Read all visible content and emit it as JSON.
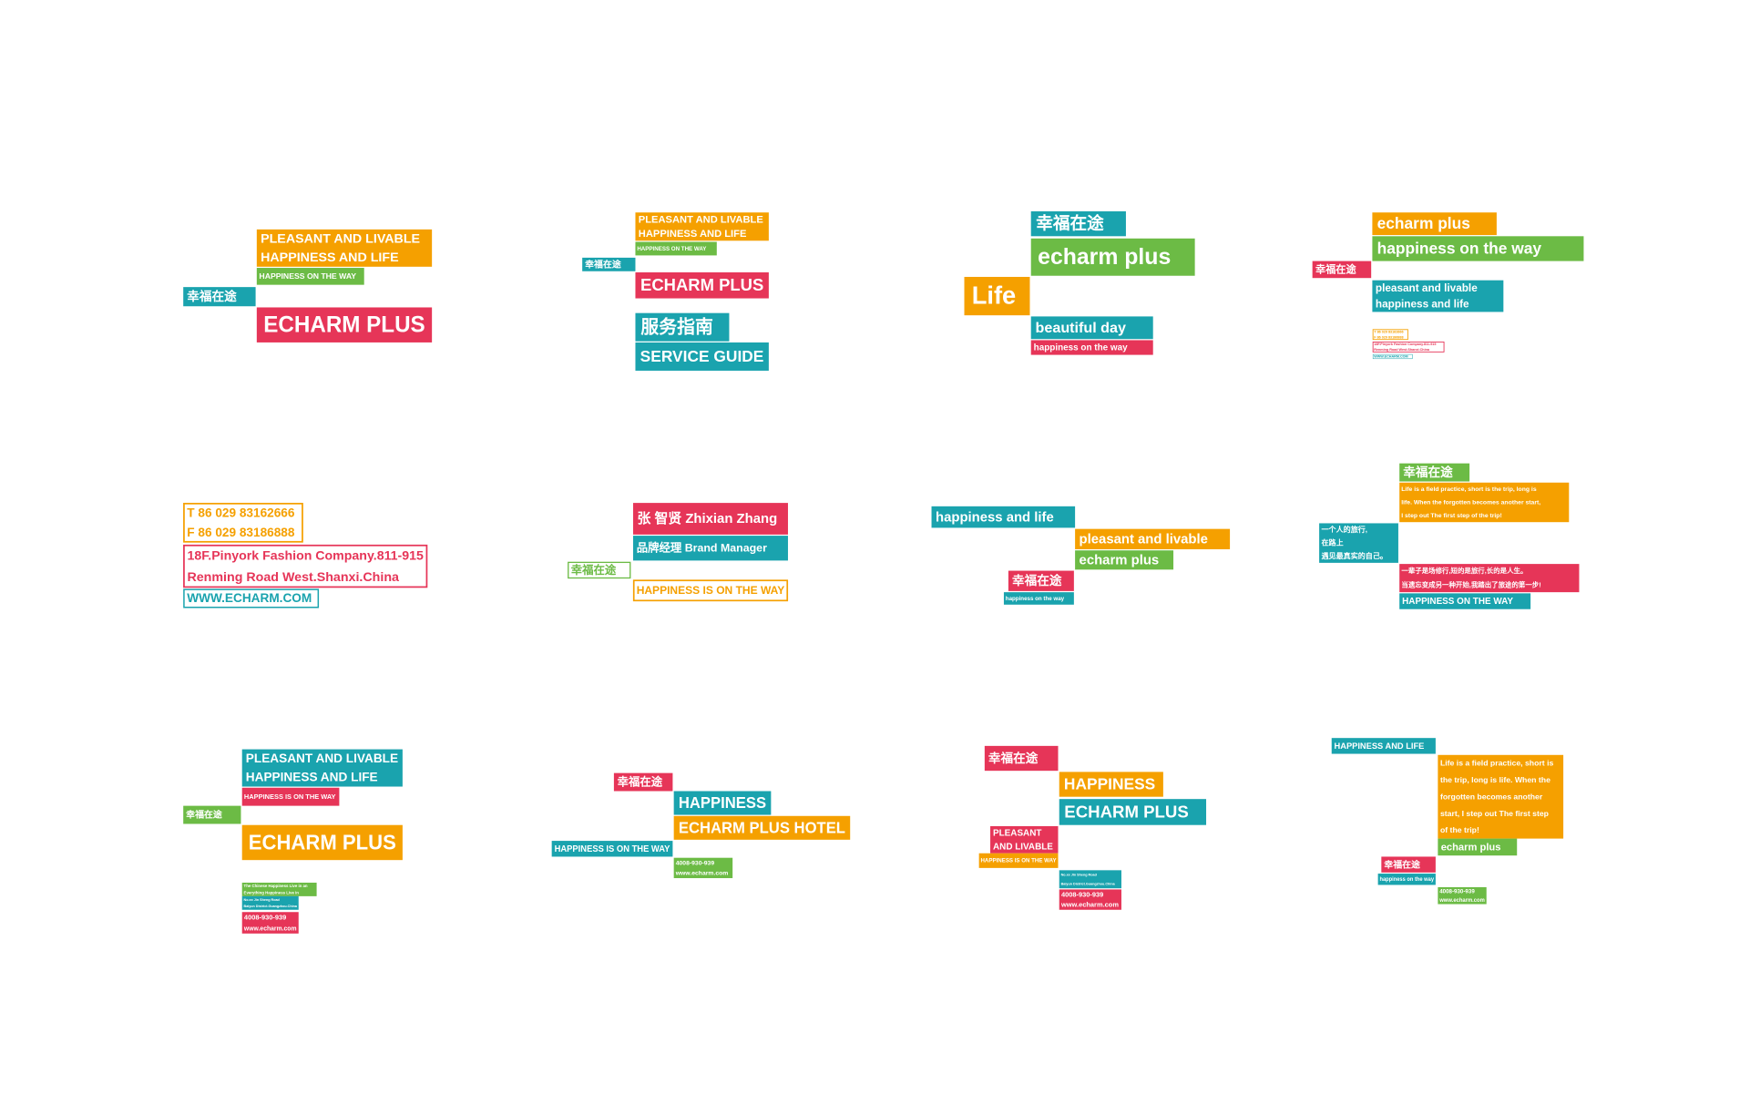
{
  "panels": [
    {
      "blocks": [
        {
          "color": "#f5a000",
          "lines": [
            "PLEASANT AND LIVABLE",
            "HAPPINESS AND LIFE"
          ]
        },
        {
          "color": "#6cbb45",
          "lines": [
            "HAPPINESS  ON THE WAY"
          ]
        },
        {
          "color": "#1aa3ae",
          "lines": [
            "幸福在途"
          ]
        },
        {
          "color": "#e63558",
          "lines": [
            "ECHARM PLUS"
          ]
        }
      ]
    },
    {
      "blocks": [
        {
          "color": "#f5a000",
          "lines": [
            "PLEASANT AND LIVABLE",
            "HAPPINESS AND LIFE"
          ]
        },
        {
          "color": "#6cbb45",
          "lines": [
            "HAPPINESS ON THE WAY"
          ]
        },
        {
          "color": "#1aa3ae",
          "lines": [
            "幸福在途"
          ]
        },
        {
          "color": "#e63558",
          "lines": [
            "ECHARM PLUS"
          ]
        },
        {
          "color": "#1aa3ae",
          "lines": [
            "服务指南"
          ]
        },
        {
          "color": "#1aa3ae",
          "lines": [
            "SERVICE GUIDE"
          ]
        }
      ]
    },
    {
      "blocks": [
        {
          "color": "#1aa3ae",
          "lines": [
            "幸福在途"
          ]
        },
        {
          "color": "#6cbb45",
          "lines": [
            "echarm plus"
          ]
        },
        {
          "color": "#f5a000",
          "lines": [
            "Life"
          ]
        },
        {
          "color": "#1aa3ae",
          "lines": [
            "beautiful day"
          ]
        },
        {
          "color": "#e63558",
          "lines": [
            "happiness on the way"
          ]
        }
      ]
    },
    {
      "blocks": [
        {
          "color": "#f5a000",
          "lines": [
            "echarm plus"
          ]
        },
        {
          "color": "#6cbb45",
          "lines": [
            "happiness on the way"
          ]
        },
        {
          "color": "#e63558",
          "lines": [
            "幸福在途"
          ]
        },
        {
          "color": "#1aa3ae",
          "lines": [
            "pleasant and livable",
            "happiness and life"
          ]
        },
        {
          "color": "#f5a000",
          "style": "outline",
          "lines": [
            "T 86 029 83162666",
            "F 86 029 83186888"
          ]
        },
        {
          "color": "#e63558",
          "style": "outline",
          "lines": [
            "18F.Pinyork Fashion Company.811-915",
            "Renming Road West.Shanxi.China"
          ]
        },
        {
          "color": "#1aa3ae",
          "style": "outline",
          "lines": [
            "WWW.ECHARM.COM"
          ]
        }
      ]
    },
    {
      "blocks": [
        {
          "color": "#f5a000",
          "style": "outline",
          "lines": [
            "T 86 029 83162666",
            "F 86 029 83186888"
          ]
        },
        {
          "color": "#e63558",
          "style": "outline",
          "lines": [
            "18F.Pinyork Fashion Company.811-915",
            "Renming Road West.Shanxi.China"
          ]
        },
        {
          "color": "#1aa3ae",
          "style": "outline",
          "lines": [
            "WWW.ECHARM.COM"
          ]
        }
      ]
    },
    {
      "blocks": [
        {
          "color": "#e63558",
          "lines": [
            "张 智贤  Zhixian Zhang"
          ]
        },
        {
          "color": "#1aa3ae",
          "lines": [
            "品牌经理  Brand Manager"
          ]
        },
        {
          "color": "#6cbb45",
          "style": "outline",
          "lines": [
            "幸福在途"
          ]
        },
        {
          "color": "#f5a000",
          "style": "outline",
          "lines": [
            "HAPPINESS IS ON THE WAY"
          ]
        }
      ]
    },
    {
      "blocks": [
        {
          "color": "#1aa3ae",
          "lines": [
            "happiness and life"
          ]
        },
        {
          "color": "#f5a000",
          "lines": [
            "pleasant and livable"
          ]
        },
        {
          "color": "#6cbb45",
          "lines": [
            "echarm plus"
          ]
        },
        {
          "color": "#e63558",
          "lines": [
            "幸福在途"
          ]
        },
        {
          "color": "#1aa3ae",
          "lines": [
            "happiness  on the way"
          ]
        }
      ]
    },
    {
      "blocks": [
        {
          "color": "#6cbb45",
          "lines": [
            "幸福在途"
          ]
        },
        {
          "color": "#f5a000",
          "lines": [
            "Life is a field practice, short is the trip, long is",
            "life. When the forgotten becomes another start,",
            "I step out The first step of the trip!"
          ]
        },
        {
          "color": "#1aa3ae",
          "lines": [
            "一个人的旅行,",
            "在路上",
            "遇见最真实的自己。"
          ]
        },
        {
          "color": "#e63558",
          "lines": [
            "一辈子是场修行,短的是旅行,长的是人生。",
            "当遗忘变成另一种开始,我踏出了旅途的第一步!"
          ]
        },
        {
          "color": "#1aa3ae",
          "lines": [
            "HAPPINESS ON THE WAY"
          ]
        }
      ]
    },
    {
      "blocks": [
        {
          "color": "#1aa3ae",
          "lines": [
            "PLEASANT AND LIVABLE",
            "HAPPINESS AND LIFE"
          ]
        },
        {
          "color": "#e63558",
          "lines": [
            "HAPPINESS IS ON THE WAY"
          ]
        },
        {
          "color": "#6cbb45",
          "lines": [
            "幸福在途"
          ]
        },
        {
          "color": "#f5a000",
          "lines": [
            "ECHARM PLUS"
          ]
        },
        {
          "color": "#6cbb45",
          "lines": [
            "The Chinese Happiness Live in an",
            "Everything Happiness Live in"
          ]
        },
        {
          "color": "#1aa3ae",
          "lines": [
            "No.xx Jin Sheng Road",
            "Baiyun District.Guangzhou.China"
          ]
        },
        {
          "color": "#e63558",
          "lines": [
            "4008-930-939",
            "www.echarm.com"
          ]
        }
      ]
    },
    {
      "blocks": [
        {
          "color": "#e63558",
          "lines": [
            "幸福在途"
          ]
        },
        {
          "color": "#1aa3ae",
          "lines": [
            "HAPPINESS"
          ]
        },
        {
          "color": "#f5a000",
          "lines": [
            "ECHARM PLUS HOTEL"
          ]
        },
        {
          "color": "#1aa3ae",
          "lines": [
            "HAPPINESS IS ON THE WAY"
          ]
        },
        {
          "color": "#6cbb45",
          "lines": [
            "4008-930-939",
            "www.echarm.com"
          ]
        }
      ]
    },
    {
      "blocks": [
        {
          "color": "#e63558",
          "lines": [
            "幸福在途"
          ]
        },
        {
          "color": "#f5a000",
          "lines": [
            "HAPPINESS"
          ]
        },
        {
          "color": "#1aa3ae",
          "lines": [
            "ECHARM PLUS"
          ]
        },
        {
          "color": "#e63558",
          "lines": [
            "PLEASANT",
            "AND LIVABLE"
          ]
        },
        {
          "color": "#f5a000",
          "lines": [
            "HAPPINESS IS ON THE WAY"
          ]
        },
        {
          "color": "#1aa3ae",
          "lines": [
            "No.xx Jin Sheng Road",
            "Baiyun District.Guangzhou.China"
          ]
        },
        {
          "color": "#e63558",
          "lines": [
            "4008-930-939",
            "www.echarm.com"
          ]
        }
      ]
    },
    {
      "blocks": [
        {
          "color": "#1aa3ae",
          "lines": [
            "HAPPINESS AND LIFE"
          ]
        },
        {
          "color": "#f5a000",
          "lines": [
            "Life is a field practice, short is",
            "the trip, long is life. When the",
            "forgotten becomes another",
            "start, I step out The first step",
            "of the trip!"
          ]
        },
        {
          "color": "#6cbb45",
          "lines": [
            "echarm plus"
          ]
        },
        {
          "color": "#e63558",
          "lines": [
            "幸福在途"
          ]
        },
        {
          "color": "#1aa3ae",
          "lines": [
            "happiness  on the way"
          ]
        },
        {
          "color": "#6cbb45",
          "lines": [
            "4008-930-939",
            "www.echarm.com"
          ]
        }
      ]
    }
  ]
}
